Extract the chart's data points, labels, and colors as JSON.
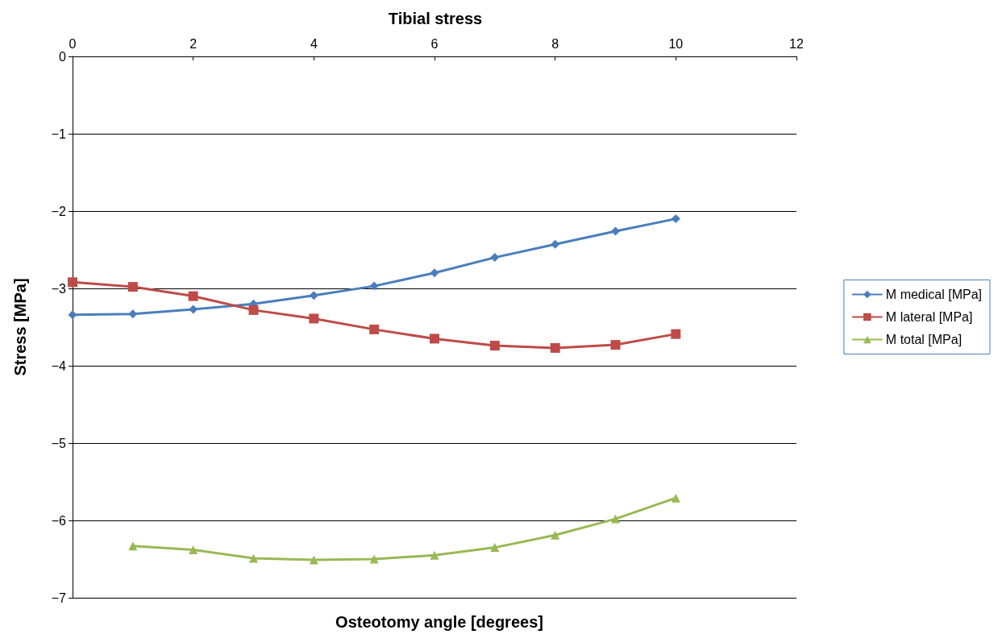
{
  "chart_data": {
    "type": "line",
    "title": "Tibial stress",
    "xlabel": "Osteotomy angle [degrees]",
    "ylabel": "Stress [MPa]",
    "x": [
      0,
      1,
      2,
      3,
      4,
      5,
      6,
      7,
      8,
      9,
      10
    ],
    "series": [
      {
        "name": "M medical [MPa]",
        "color": "#4a7ebb",
        "marker": "diamond",
        "values": [
          -3.34,
          -3.33,
          -3.27,
          -3.2,
          -3.09,
          -2.97,
          -2.8,
          -2.6,
          -2.43,
          -2.26,
          -2.1
        ]
      },
      {
        "name": "M lateral [MPa]",
        "color": "#be4b48",
        "marker": "square",
        "values": [
          -2.92,
          -2.98,
          -3.1,
          -3.28,
          -3.39,
          -3.53,
          -3.65,
          -3.74,
          -3.77,
          -3.73,
          -3.59
        ]
      },
      {
        "name": "M total [MPa]",
        "color": "#98b954",
        "marker": "triangle",
        "values": [
          null,
          -6.33,
          -6.38,
          -6.49,
          -6.51,
          -6.5,
          -6.45,
          -6.35,
          -6.19,
          -5.98,
          -5.71
        ]
      }
    ],
    "xlim": [
      0,
      12
    ],
    "xticks": [
      0,
      2,
      4,
      6,
      8,
      10,
      12
    ],
    "ylim": [
      -7,
      0
    ],
    "yticks": [
      -7,
      -6,
      -5,
      -4,
      -3,
      -2,
      -1,
      0
    ],
    "grid": "y",
    "legend": "right",
    "line_style": "solid"
  }
}
